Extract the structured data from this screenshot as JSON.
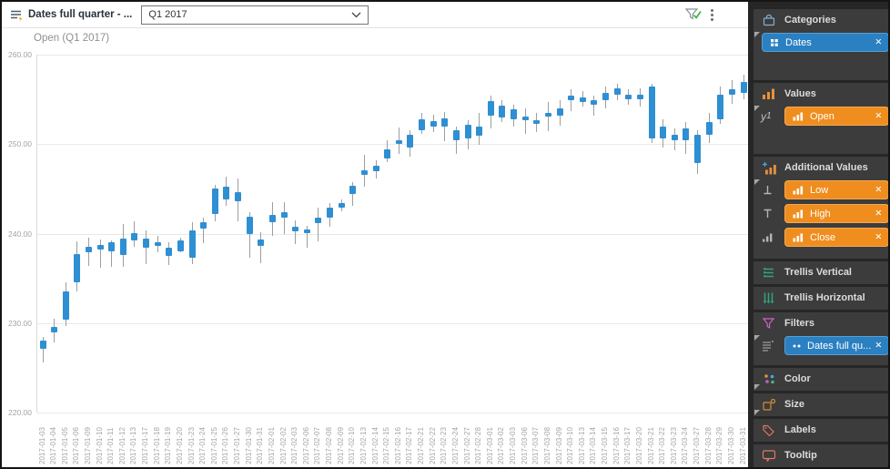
{
  "toolbar": {
    "filter_name": "Dates full quarter - ...",
    "dropdown_value": "Q1 2017",
    "icons": [
      "filter-list-icon",
      "dropdown-chevron-icon",
      "filter-applied-check-icon",
      "kebab-menu-icon"
    ]
  },
  "icons": {
    "close_glyph": "✕"
  },
  "chart_data": {
    "type": "candlestick",
    "title": "Open (Q1 2017)",
    "xlabel": "",
    "ylabel": "",
    "ylim": [
      220,
      260
    ],
    "yticks": [
      260,
      250,
      240,
      230,
      220
    ],
    "ytick_labels": [
      "260.00",
      "250.00",
      "240.00",
      "230.00",
      "220.00"
    ],
    "grid": true,
    "colors": {
      "body": "#2e8fd3",
      "wick": "#9e9e9e"
    },
    "dates": [
      "2017-01-03",
      "2017-01-04",
      "2017-01-05",
      "2017-01-06",
      "2017-01-09",
      "2017-01-10",
      "2017-01-11",
      "2017-01-12",
      "2017-01-13",
      "2017-01-17",
      "2017-01-18",
      "2017-01-19",
      "2017-01-20",
      "2017-01-23",
      "2017-01-24",
      "2017-01-25",
      "2017-01-26",
      "2017-01-27",
      "2017-01-30",
      "2017-01-31",
      "2017-02-01",
      "2017-02-02",
      "2017-02-03",
      "2017-02-06",
      "2017-02-07",
      "2017-02-08",
      "2017-02-09",
      "2017-02-10",
      "2017-02-13",
      "2017-02-14",
      "2017-02-15",
      "2017-02-16",
      "2017-02-17",
      "2017-02-21",
      "2017-02-22",
      "2017-02-23",
      "2017-02-24",
      "2017-02-27",
      "2017-02-28",
      "2017-03-01",
      "2017-03-02",
      "2017-03-03",
      "2017-03-06",
      "2017-03-07",
      "2017-03-08",
      "2017-03-09",
      "2017-03-10",
      "2017-03-13",
      "2017-03-14",
      "2017-03-15",
      "2017-03-16",
      "2017-03-17",
      "2017-03-20",
      "2017-03-21",
      "2017-03-22",
      "2017-03-23",
      "2017-03-24",
      "2017-03-27",
      "2017-03-28",
      "2017-03-29",
      "2017-03-30",
      "2017-03-31"
    ],
    "open": [
      227.1,
      229.0,
      230.4,
      234.6,
      237.9,
      238.7,
      238.0,
      239.4,
      239.2,
      239.4,
      238.6,
      238.4,
      238.0,
      237.3,
      240.6,
      242.2,
      245.2,
      244.6,
      241.9,
      239.3,
      241.3,
      241.8,
      240.8,
      240.5,
      241.2,
      241.8,
      242.9,
      244.4,
      246.6,
      247.0,
      248.4,
      250.4,
      249.6,
      251.6,
      252.6,
      252.0,
      250.4,
      250.6,
      252.0,
      253.2,
      254.3,
      253.9,
      253.1,
      252.7,
      253.1,
      253.2,
      254.9,
      255.2,
      254.9,
      254.9,
      255.5,
      255.5,
      255.5,
      256.4,
      250.6,
      251.0,
      250.4,
      251.0,
      251.0,
      252.8,
      255.5,
      255.7
    ],
    "close": [
      228.0,
      229.6,
      233.5,
      237.7,
      238.5,
      238.2,
      239.0,
      237.6,
      240.1,
      238.4,
      239.0,
      237.5,
      239.2,
      240.4,
      241.3,
      245.0,
      243.8,
      243.6,
      239.9,
      238.6,
      242.1,
      242.4,
      240.3,
      240.1,
      241.8,
      242.9,
      243.4,
      245.3,
      247.1,
      247.6,
      249.4,
      250.0,
      251.0,
      252.8,
      252.0,
      252.9,
      251.6,
      252.2,
      250.9,
      254.8,
      253.0,
      252.8,
      252.7,
      252.3,
      253.5,
      254.0,
      255.4,
      254.7,
      254.4,
      255.7,
      256.2,
      255.0,
      255.0,
      250.6,
      252.0,
      250.4,
      251.8,
      247.9,
      252.5,
      255.5,
      256.1,
      256.9
    ],
    "high": [
      228.4,
      230.5,
      234.6,
      239.1,
      239.5,
      239.3,
      239.2,
      241.1,
      241.4,
      240.4,
      239.7,
      239.0,
      239.5,
      241.3,
      241.8,
      245.4,
      246.4,
      246.2,
      242.4,
      240.2,
      243.5,
      243.5,
      241.5,
      240.9,
      242.9,
      243.4,
      243.8,
      245.8,
      248.8,
      248.2,
      250.4,
      251.9,
      251.6,
      253.5,
      253.3,
      253.6,
      252.0,
      252.7,
      253.5,
      255.4,
      254.9,
      254.4,
      254.0,
      253.5,
      254.7,
      254.9,
      256.1,
      255.9,
      255.4,
      256.4,
      256.7,
      256.1,
      256.2,
      256.7,
      252.8,
      251.8,
      252.5,
      251.6,
      253.5,
      256.4,
      257.2,
      257.8
    ],
    "low": [
      225.6,
      227.8,
      229.7,
      233.5,
      236.4,
      236.2,
      236.3,
      236.3,
      238.5,
      236.6,
      237.9,
      236.5,
      237.9,
      236.6,
      238.9,
      241.4,
      243.1,
      241.4,
      237.3,
      236.7,
      239.7,
      239.9,
      238.8,
      238.4,
      239.1,
      240.8,
      242.5,
      243.1,
      245.2,
      246.2,
      248.0,
      248.9,
      248.6,
      251.1,
      251.3,
      250.3,
      248.9,
      249.4,
      249.9,
      251.8,
      252.5,
      252.0,
      251.1,
      251.3,
      251.5,
      252.1,
      253.7,
      254.2,
      253.2,
      254.0,
      254.9,
      254.4,
      254.2,
      250.1,
      249.6,
      249.3,
      248.9,
      246.7,
      250.1,
      252.3,
      254.5,
      255.0
    ]
  },
  "panel": {
    "sections": {
      "categories": {
        "title": "Categories",
        "icon": "briefcase-icon",
        "has_menu": true,
        "pills": [
          {
            "label": "Dates",
            "color": "blue",
            "icon": "grid-icon"
          }
        ]
      },
      "values": {
        "title": "Values",
        "icon": "bar-chart-icon",
        "has_menu": true,
        "axis_label": "y",
        "axis_sub": "1",
        "pills": [
          {
            "label": "Open",
            "color": "orange",
            "icon": "mini-bars-icon"
          }
        ]
      },
      "additional_values": {
        "title": "Additional Values",
        "icon": "add-bar-chart-icon",
        "rows": [
          {
            "icon": "low-marker-icon",
            "label": "Low",
            "color": "orange"
          },
          {
            "icon": "high-marker-icon",
            "label": "High",
            "color": "orange"
          },
          {
            "icon": "close-marker-icon",
            "label": "Close",
            "color": "orange"
          }
        ]
      },
      "trellis_vertical": {
        "title": "Trellis Vertical",
        "icon": "horizontal-lines-icon",
        "has_menu": true
      },
      "trellis_horizontal": {
        "title": "Trellis Horizontal",
        "icon": "vertical-lines-icon",
        "has_menu": true
      },
      "filters": {
        "title": "Filters",
        "icon": "funnel-icon",
        "pills": [
          {
            "label": "Dates full qu...",
            "color": "blue",
            "icon": "dots-icon",
            "row_icon": "list-icon"
          }
        ]
      },
      "color": {
        "title": "Color",
        "icon": "color-dots-icon"
      },
      "size": {
        "title": "Size",
        "icon": "size-square-icon"
      },
      "labels": {
        "title": "Labels",
        "icon": "tag-icon"
      },
      "tooltip": {
        "title": "Tooltip",
        "icon": "speech-bubble-icon"
      }
    }
  }
}
